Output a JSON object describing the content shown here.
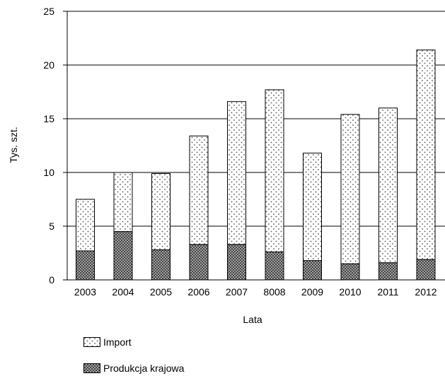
{
  "chart_data": {
    "type": "bar",
    "stacked": true,
    "categories": [
      "2003",
      "2004",
      "2005",
      "2006",
      "2007",
      "8008",
      "2009",
      "2010",
      "2011",
      "2012"
    ],
    "series": [
      {
        "name": "Produkcja krajowa",
        "values": [
          2.7,
          4.5,
          2.8,
          3.3,
          3.3,
          2.6,
          1.8,
          1.5,
          1.6,
          1.9
        ]
      },
      {
        "name": "Import",
        "values": [
          4.8,
          5.5,
          7.1,
          10.1,
          13.3,
          15.1,
          10.0,
          13.9,
          14.4,
          19.5
        ]
      }
    ],
    "xlabel": "Lata",
    "ylabel": "Tys. szt.",
    "ylim": [
      0,
      25
    ],
    "yticks": [
      "0",
      "5",
      "10",
      "15",
      "20",
      "25"
    ],
    "grid": true,
    "legend_position": "bottom-left",
    "colors": {
      "import_dots": "#555555",
      "domestic_pattern": "#333333",
      "domestic_bg": "#bbbbbb",
      "grid": "#000000"
    }
  }
}
